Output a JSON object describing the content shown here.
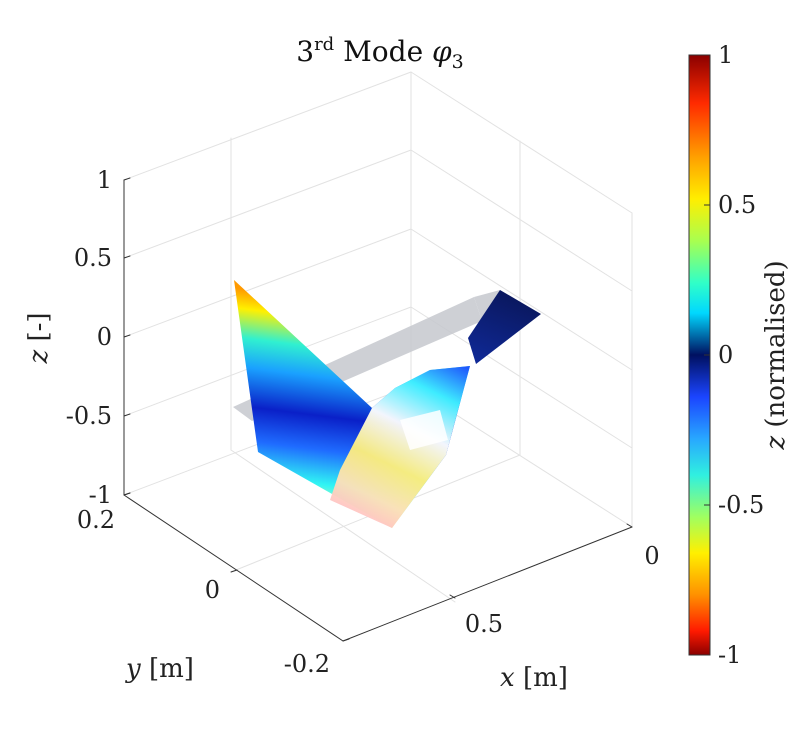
{
  "chart_data": {
    "type": "surface3d",
    "title": {
      "prefix": "3",
      "sup": "rd",
      "mid": " Mode ",
      "symbol": "φ",
      "sub": "3"
    },
    "axes": {
      "x": {
        "var": "x",
        "unit": " [m]",
        "ticks": [
          {
            "value": 0,
            "label": "0"
          },
          {
            "value": 0.5,
            "label": "0.5"
          }
        ]
      },
      "y": {
        "var": "y",
        "unit": " [m]",
        "ticks": [
          {
            "value": 0.2,
            "label": "0.2"
          },
          {
            "value": 0,
            "label": "0"
          },
          {
            "value": -0.2,
            "label": "-0.2"
          }
        ]
      },
      "z": {
        "var": "z",
        "unit": " [-]",
        "range": [
          -1,
          1
        ],
        "ticks": [
          {
            "value": 1,
            "label": "1"
          },
          {
            "value": 0.5,
            "label": "0.5"
          },
          {
            "value": 0,
            "label": "0"
          },
          {
            "value": -0.5,
            "label": "-0.5"
          },
          {
            "value": -1,
            "label": "-1"
          }
        ]
      }
    },
    "colorbar": {
      "var": "z",
      "label": " (normalised)",
      "range": [
        -1,
        1
      ],
      "colormap": "jet (reversed)",
      "ticks": [
        {
          "value": 1,
          "label": "1"
        },
        {
          "value": 0.5,
          "label": "0.5"
        },
        {
          "value": 0,
          "label": "0"
        },
        {
          "value": -0.5,
          "label": "-0.5"
        },
        {
          "value": -1,
          "label": "-1"
        }
      ]
    },
    "grid": true,
    "undeformed_color": "#b8bcc4",
    "mode_shape_vertices": [
      {
        "name": "tip-left",
        "z": 0.72
      },
      {
        "name": "root-left",
        "z": -0.55
      },
      {
        "name": "mid",
        "z": -0.1
      },
      {
        "name": "bottom",
        "z": -0.9
      },
      {
        "name": "right-knee",
        "z": -0.1
      },
      {
        "name": "right-upper",
        "z": 0.1
      },
      {
        "name": "tip-right",
        "z": 0.05
      }
    ]
  }
}
